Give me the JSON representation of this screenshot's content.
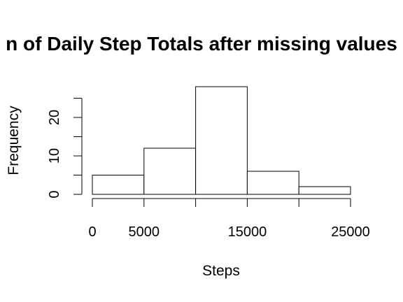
{
  "chart_data": {
    "type": "bar",
    "title": "n of Daily Step Totals after missing values",
    "xlabel": "Steps",
    "ylabel": "Frequency",
    "bins": [
      {
        "from": 0,
        "to": 5000,
        "value": 5
      },
      {
        "from": 5000,
        "to": 10000,
        "value": 12
      },
      {
        "from": 10000,
        "to": 15000,
        "value": 28
      },
      {
        "from": 15000,
        "to": 20000,
        "value": 6
      },
      {
        "from": 20000,
        "to": 25000,
        "value": 2
      }
    ],
    "xlim": [
      0,
      25000
    ],
    "ylim": [
      0,
      28
    ],
    "x_ticks": [
      0,
      5000,
      10000,
      15000,
      20000,
      25000
    ],
    "x_tick_labels": [
      "0",
      "5000",
      "",
      "15000",
      "",
      "25000"
    ],
    "y_ticks": [
      0,
      10,
      20
    ],
    "y_tick_labels": [
      "0",
      "10",
      "20"
    ],
    "bar_fill": "#ffffff",
    "bar_stroke": "#000000",
    "grid": false,
    "legend": "none"
  }
}
